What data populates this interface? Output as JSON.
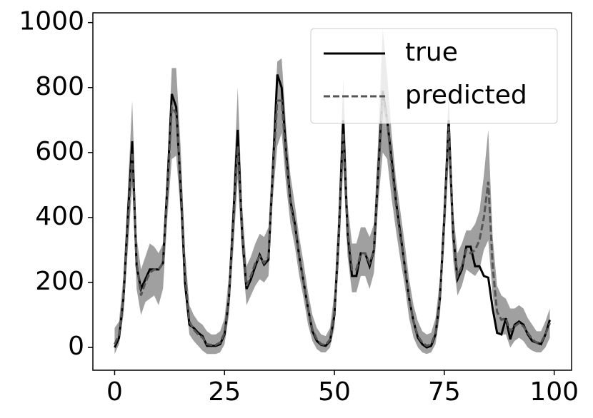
{
  "chart_data": {
    "type": "line",
    "x": [
      0,
      1,
      2,
      3,
      4,
      5,
      6,
      7,
      8,
      9,
      10,
      11,
      12,
      13,
      14,
      15,
      16,
      17,
      18,
      19,
      20,
      21,
      22,
      23,
      24,
      25,
      26,
      27,
      28,
      29,
      30,
      31,
      32,
      33,
      34,
      35,
      36,
      37,
      38,
      39,
      40,
      41,
      42,
      43,
      44,
      45,
      46,
      47,
      48,
      49,
      50,
      51,
      52,
      53,
      54,
      55,
      56,
      57,
      58,
      59,
      60,
      61,
      62,
      63,
      64,
      65,
      66,
      67,
      68,
      69,
      70,
      71,
      72,
      73,
      74,
      75,
      76,
      77,
      78,
      79,
      80,
      81,
      82,
      83,
      84,
      85,
      86,
      87,
      88,
      89,
      90,
      91,
      92,
      93,
      94,
      95,
      96,
      97,
      98,
      99
    ],
    "series": [
      {
        "name": "true",
        "color": "#000000",
        "dash": false,
        "values": [
          0,
          30,
          150,
          400,
          635,
          250,
          180,
          210,
          240,
          240,
          240,
          260,
          500,
          780,
          740,
          500,
          200,
          70,
          60,
          45,
          35,
          5,
          5,
          5,
          10,
          40,
          150,
          400,
          670,
          350,
          180,
          210,
          250,
          285,
          255,
          270,
          550,
          840,
          800,
          600,
          450,
          380,
          280,
          200,
          120,
          50,
          20,
          8,
          5,
          20,
          100,
          350,
          700,
          350,
          220,
          220,
          290,
          290,
          250,
          300,
          550,
          790,
          700,
          580,
          450,
          350,
          250,
          150,
          80,
          30,
          10,
          0,
          5,
          40,
          150,
          400,
          700,
          350,
          210,
          240,
          310,
          310,
          250,
          250,
          220,
          215,
          120,
          45,
          40,
          90,
          25,
          70,
          80,
          70,
          40,
          20,
          15,
          10,
          40,
          85
        ]
      },
      {
        "name": "predicted",
        "color": "#555555",
        "dash": true,
        "values": [
          10,
          40,
          150,
          380,
          600,
          260,
          160,
          200,
          230,
          240,
          240,
          260,
          480,
          740,
          720,
          520,
          230,
          80,
          55,
          40,
          30,
          10,
          8,
          8,
          15,
          45,
          150,
          380,
          620,
          360,
          190,
          220,
          260,
          280,
          260,
          280,
          540,
          760,
          760,
          580,
          440,
          370,
          280,
          200,
          120,
          55,
          25,
          10,
          8,
          25,
          110,
          340,
          660,
          360,
          240,
          240,
          290,
          290,
          260,
          300,
          540,
          760,
          700,
          560,
          440,
          340,
          250,
          150,
          80,
          35,
          15,
          5,
          10,
          45,
          150,
          390,
          680,
          340,
          220,
          250,
          300,
          290,
          300,
          330,
          400,
          510,
          250,
          110,
          85,
          90,
          50,
          65,
          75,
          65,
          45,
          25,
          15,
          15,
          40,
          75
        ]
      }
    ],
    "band": {
      "color": "#808080",
      "lower": [
        -20,
        10,
        100,
        300,
        500,
        180,
        100,
        140,
        150,
        160,
        130,
        180,
        400,
        580,
        590,
        420,
        170,
        40,
        20,
        5,
        -10,
        -20,
        -20,
        -20,
        -15,
        10,
        100,
        300,
        520,
        290,
        130,
        160,
        190,
        210,
        200,
        220,
        460,
        620,
        660,
        500,
        380,
        310,
        220,
        150,
        70,
        20,
        -5,
        -15,
        -15,
        0,
        60,
        260,
        560,
        280,
        170,
        170,
        220,
        220,
        180,
        230,
        450,
        600,
        580,
        460,
        360,
        270,
        190,
        90,
        30,
        0,
        -15,
        -20,
        -15,
        10,
        100,
        320,
        580,
        270,
        160,
        190,
        240,
        230,
        220,
        240,
        300,
        330,
        160,
        50,
        40,
        40,
        0,
        20,
        30,
        20,
        0,
        -10,
        -15,
        -15,
        0,
        30
      ],
      "upper": [
        60,
        80,
        220,
        480,
        760,
        340,
        240,
        280,
        320,
        310,
        290,
        320,
        560,
        860,
        860,
        620,
        300,
        130,
        100,
        80,
        70,
        50,
        40,
        40,
        50,
        90,
        220,
        470,
        800,
        440,
        250,
        280,
        320,
        350,
        340,
        370,
        620,
        880,
        890,
        680,
        530,
        440,
        340,
        260,
        170,
        100,
        60,
        40,
        35,
        60,
        170,
        440,
        830,
        440,
        320,
        320,
        370,
        370,
        340,
        380,
        650,
        980,
        840,
        660,
        520,
        420,
        320,
        210,
        130,
        80,
        50,
        40,
        45,
        90,
        210,
        470,
        780,
        420,
        290,
        320,
        360,
        360,
        380,
        420,
        530,
        670,
        340,
        190,
        160,
        150,
        120,
        120,
        130,
        120,
        90,
        70,
        50,
        50,
        80,
        120
      ]
    },
    "xlim": [
      -4.95,
      103.95
    ],
    "ylim": [
      -70,
      1030
    ],
    "xticks": [
      0,
      25,
      50,
      75,
      100
    ],
    "yticks": [
      0,
      200,
      400,
      600,
      800,
      1000
    ],
    "legend": "upper right"
  }
}
